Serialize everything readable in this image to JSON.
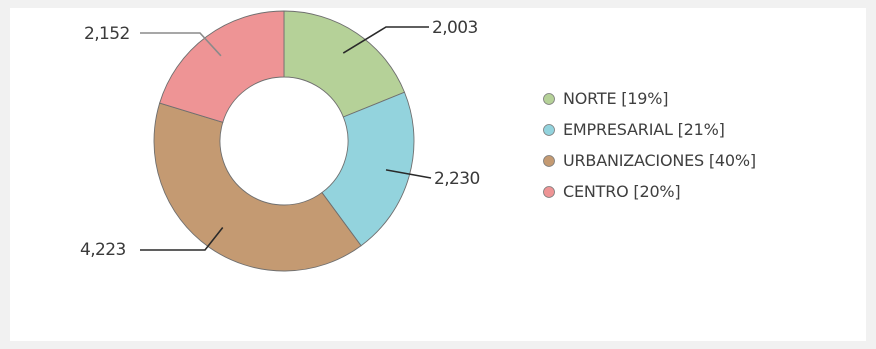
{
  "chart_data": {
    "type": "donut",
    "title": "",
    "series": [
      {
        "name": "NORTE",
        "value": 2003,
        "label": "2,003",
        "legend": "NORTE [19%]",
        "color": "#b5d198"
      },
      {
        "name": "EMPRESARIAL",
        "value": 2230,
        "label": "2,230",
        "legend": "EMPRESARIAL [21%]",
        "color": "#93d3dd"
      },
      {
        "name": "URBANIZACIONES",
        "value": 4223,
        "label": "4,223",
        "legend": "URBANIZACIONES [40%]",
        "color": "#c49a72"
      },
      {
        "name": "CENTRO",
        "value": 2152,
        "label": "2,152",
        "legend": "CENTRO [20%]",
        "color": "#ee9495"
      }
    ],
    "legend_position": "right"
  }
}
